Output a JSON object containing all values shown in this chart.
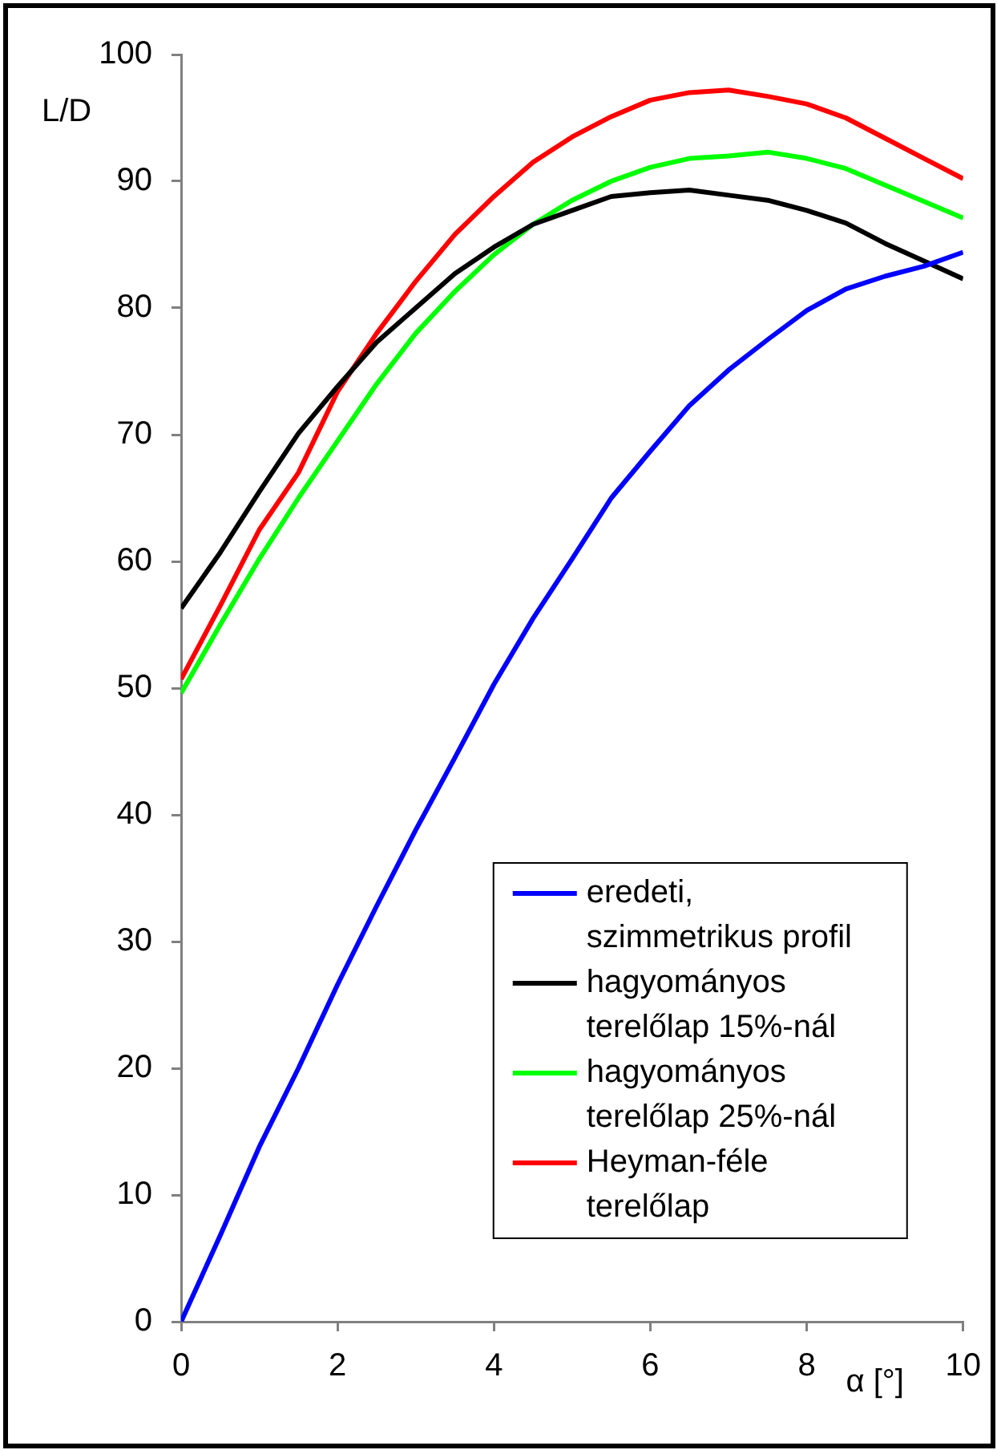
{
  "chart_data": {
    "type": "line",
    "xlabel": "α [°]",
    "ylabel": "L/D",
    "x": [
      0,
      0.5,
      1,
      1.5,
      2,
      2.5,
      3,
      3.5,
      4,
      4.5,
      5,
      5.5,
      6,
      6.5,
      7,
      7.5,
      8,
      8.5,
      9,
      9.5,
      10
    ],
    "xlim": [
      0,
      10
    ],
    "xticks": [
      0,
      2,
      4,
      6,
      8,
      10
    ],
    "ylim": [
      0,
      100
    ],
    "yticks": [
      0,
      10,
      20,
      30,
      40,
      50,
      60,
      70,
      80,
      90,
      100
    ],
    "grid": false,
    "legend": "bottom right",
    "marker": "none",
    "line_style": "solid",
    "series": [
      {
        "name": "eredeti, szimmetrikus profil",
        "color": "#0000ff",
        "values": [
          0,
          6.8,
          13.8,
          20,
          26.6,
          32.8,
          38.8,
          44.5,
          50.3,
          55.5,
          60.2,
          65,
          68.7,
          72.3,
          75.1,
          77.5,
          79.8,
          81.5,
          82.5,
          83.3,
          84.4
        ]
      },
      {
        "name": "hagyományos terelőlap 15%-nál",
        "color": "#000000",
        "values": [
          56.3,
          60.7,
          65.5,
          70.1,
          73.8,
          77.3,
          80,
          82.7,
          84.8,
          86.6,
          87.7,
          88.8,
          89.1,
          89.3,
          88.9,
          88.5,
          87.7,
          86.7,
          85.1,
          83.7,
          82.3
        ]
      },
      {
        "name": "hagyományos terelőlap 25%-nál",
        "color": "#00ff00",
        "values": [
          49.6,
          55,
          60.2,
          65,
          69.5,
          74,
          78,
          81.3,
          84.2,
          86.6,
          88.5,
          90,
          91.1,
          91.8,
          92,
          92.3,
          91.8,
          91,
          89.7,
          88.4,
          87.1
        ]
      },
      {
        "name": "Heyman-féle terelőlap",
        "color": "#ff0000",
        "values": [
          50.7,
          56.5,
          62.5,
          67,
          73.4,
          78,
          82.1,
          85.8,
          88.8,
          91.5,
          93.5,
          95.1,
          96.4,
          97,
          97.2,
          96.7,
          96.1,
          95,
          93.4,
          91.8,
          90.2
        ]
      }
    ]
  }
}
